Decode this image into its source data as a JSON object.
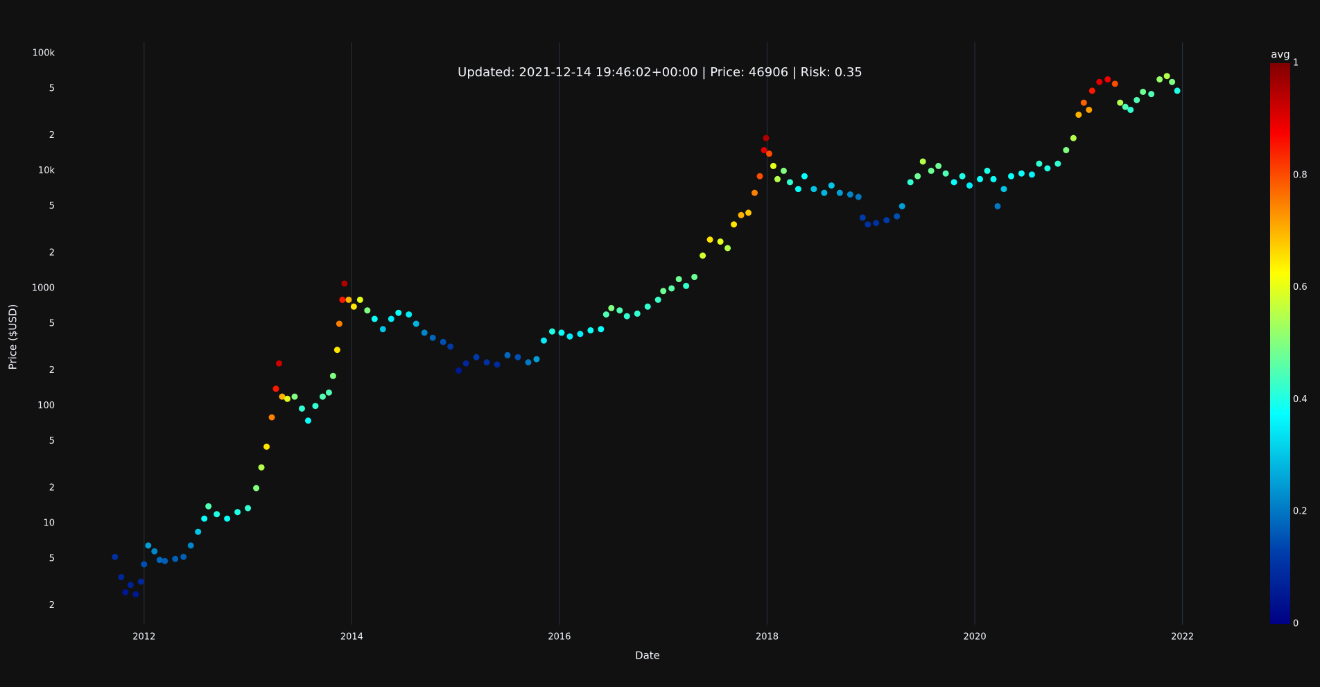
{
  "chart_data": {
    "type": "scatter",
    "title": "Updated: 2021-12-14 19:46:02+00:00 | Price: 46906 | Risk: 0.35",
    "x_label": "Date",
    "y_label": "Price ($USD)",
    "x": [
      2011.72,
      2011.78,
      2011.82,
      2011.87,
      2011.92,
      2011.97,
      2012.0,
      2012.04,
      2012.1,
      2012.15,
      2012.2,
      2012.3,
      2012.38,
      2012.45,
      2012.52,
      2012.58,
      2012.62,
      2012.7,
      2012.8,
      2012.9,
      2013.0,
      2013.08,
      2013.13,
      2013.18,
      2013.23,
      2013.27,
      2013.3,
      2013.33,
      2013.38,
      2013.45,
      2013.52,
      2013.58,
      2013.65,
      2013.72,
      2013.78,
      2013.82,
      2013.86,
      2013.88,
      2013.91,
      2013.93,
      2013.97,
      2014.02,
      2014.08,
      2014.15,
      2014.22,
      2014.3,
      2014.38,
      2014.45,
      2014.55,
      2014.62,
      2014.7,
      2014.78,
      2014.88,
      2014.95,
      2015.03,
      2015.1,
      2015.2,
      2015.3,
      2015.4,
      2015.5,
      2015.6,
      2015.7,
      2015.78,
      2015.85,
      2015.93,
      2016.02,
      2016.1,
      2016.2,
      2016.3,
      2016.4,
      2016.45,
      2016.5,
      2016.58,
      2016.65,
      2016.75,
      2016.85,
      2016.95,
      2017.0,
      2017.08,
      2017.15,
      2017.22,
      2017.3,
      2017.38,
      2017.45,
      2017.55,
      2017.62,
      2017.68,
      2017.75,
      2017.82,
      2017.88,
      2017.93,
      2017.97,
      2017.99,
      2018.02,
      2018.06,
      2018.1,
      2018.16,
      2018.22,
      2018.3,
      2018.36,
      2018.45,
      2018.55,
      2018.62,
      2018.7,
      2018.8,
      2018.88,
      2018.92,
      2018.97,
      2019.05,
      2019.15,
      2019.25,
      2019.3,
      2019.38,
      2019.45,
      2019.5,
      2019.58,
      2019.65,
      2019.72,
      2019.8,
      2019.88,
      2019.95,
      2020.05,
      2020.12,
      2020.18,
      2020.22,
      2020.28,
      2020.35,
      2020.45,
      2020.55,
      2020.62,
      2020.7,
      2020.8,
      2020.88,
      2020.95,
      2021.0,
      2021.05,
      2021.1,
      2021.13,
      2021.2,
      2021.28,
      2021.35,
      2021.4,
      2021.45,
      2021.5,
      2021.56,
      2021.62,
      2021.7,
      2021.78,
      2021.85,
      2021.9,
      2021.95
    ],
    "values": [
      5.2,
      3.5,
      2.6,
      3.0,
      2.5,
      3.2,
      4.5,
      6.5,
      5.8,
      4.9,
      4.8,
      5.0,
      5.2,
      6.5,
      8.5,
      11,
      14,
      12,
      11,
      12.5,
      13.5,
      20,
      30,
      45,
      80,
      140,
      230,
      120,
      115,
      120,
      95,
      75,
      100,
      120,
      130,
      180,
      300,
      500,
      800,
      1100,
      800,
      700,
      800,
      650,
      550,
      450,
      550,
      620,
      600,
      500,
      420,
      380,
      350,
      320,
      200,
      230,
      260,
      235,
      225,
      270,
      260,
      235,
      250,
      360,
      430,
      420,
      390,
      410,
      440,
      450,
      600,
      680,
      650,
      580,
      610,
      700,
      800,
      950,
      1000,
      1200,
      1050,
      1250,
      1900,
      2600,
      2500,
      2200,
      3500,
      4200,
      4400,
      6500,
      9000,
      15000,
      19000,
      14000,
      11000,
      8500,
      10000,
      8000,
      7000,
      9000,
      7000,
      6500,
      7500,
      6500,
      6300,
      6000,
      4000,
      3500,
      3600,
      3800,
      4100,
      5000,
      8000,
      9000,
      12000,
      10000,
      11000,
      9500,
      8000,
      9000,
      7500,
      8500,
      10000,
      8500,
      5000,
      7000,
      9000,
      9500,
      9300,
      11500,
      10500,
      11500,
      15000,
      19000,
      30000,
      38000,
      33000,
      48000,
      57000,
      60000,
      55000,
      38000,
      35000,
      33000,
      40000,
      47000,
      45000,
      60000,
      64000,
      57000,
      48000
    ],
    "color_values": [
      0.1,
      0.08,
      0.05,
      0.07,
      0.05,
      0.08,
      0.15,
      0.25,
      0.22,
      0.18,
      0.17,
      0.17,
      0.17,
      0.22,
      0.3,
      0.38,
      0.45,
      0.4,
      0.38,
      0.4,
      0.42,
      0.5,
      0.55,
      0.65,
      0.75,
      0.85,
      0.92,
      0.7,
      0.6,
      0.5,
      0.42,
      0.38,
      0.42,
      0.45,
      0.45,
      0.5,
      0.65,
      0.75,
      0.85,
      0.95,
      0.7,
      0.65,
      0.6,
      0.5,
      0.38,
      0.3,
      0.35,
      0.38,
      0.35,
      0.28,
      0.22,
      0.18,
      0.15,
      0.12,
      0.05,
      0.08,
      0.12,
      0.1,
      0.09,
      0.18,
      0.15,
      0.2,
      0.25,
      0.35,
      0.4,
      0.38,
      0.35,
      0.35,
      0.38,
      0.38,
      0.45,
      0.5,
      0.45,
      0.42,
      0.42,
      0.42,
      0.43,
      0.48,
      0.46,
      0.48,
      0.42,
      0.48,
      0.58,
      0.65,
      0.6,
      0.55,
      0.65,
      0.7,
      0.68,
      0.75,
      0.8,
      0.9,
      0.95,
      0.8,
      0.6,
      0.55,
      0.5,
      0.42,
      0.38,
      0.38,
      0.3,
      0.28,
      0.3,
      0.25,
      0.22,
      0.2,
      0.12,
      0.1,
      0.1,
      0.12,
      0.15,
      0.25,
      0.42,
      0.48,
      0.55,
      0.48,
      0.48,
      0.45,
      0.38,
      0.4,
      0.35,
      0.38,
      0.4,
      0.38,
      0.2,
      0.3,
      0.38,
      0.38,
      0.36,
      0.42,
      0.4,
      0.42,
      0.5,
      0.55,
      0.7,
      0.78,
      0.72,
      0.85,
      0.9,
      0.88,
      0.8,
      0.55,
      0.45,
      0.42,
      0.45,
      0.48,
      0.45,
      0.52,
      0.55,
      0.5,
      0.4
    ],
    "xlim": [
      2011.18,
      2022.53
    ],
    "xticks": [
      2012,
      2014,
      2016,
      2018,
      2020,
      2022
    ],
    "ylim": [
      1.38,
      124000
    ],
    "log_y": true,
    "yticks": [
      2,
      {
        "value": 5,
        "label": "5"
      },
      10,
      {
        "value": 20,
        "label": "2"
      },
      {
        "value": 50,
        "label": "5"
      },
      100,
      {
        "value": 200,
        "label": "2"
      },
      {
        "value": 500,
        "label": "5"
      },
      1000,
      {
        "value": 2000,
        "label": "2"
      },
      {
        "value": 5000,
        "label": "5"
      },
      {
        "value": 10000,
        "label": "10k"
      },
      {
        "value": 20000,
        "label": "2"
      },
      {
        "value": 50000,
        "label": "5"
      },
      {
        "value": 100000,
        "label": "100k"
      }
    ],
    "grid_x": true,
    "colorbar": {
      "title": "avg",
      "range": [
        0,
        1
      ],
      "ticks": [
        0,
        0.2,
        0.4,
        0.6,
        0.8,
        1
      ]
    },
    "colorscale": [
      [
        0,
        "#000083"
      ],
      [
        0.125,
        "#003caa"
      ],
      [
        0.375,
        "#05ffff"
      ],
      [
        0.625,
        "#ffff00"
      ],
      [
        0.875,
        "#fa0000"
      ],
      [
        1,
        "#800000"
      ]
    ]
  }
}
